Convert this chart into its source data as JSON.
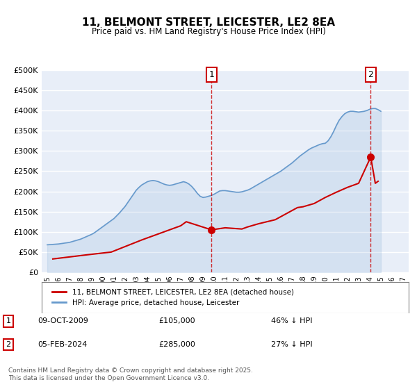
{
  "title": "11, BELMONT STREET, LEICESTER, LE2 8EA",
  "subtitle": "Price paid vs. HM Land Registry's House Price Index (HPI)",
  "bg_color": "#f0f4fa",
  "plot_bg_color": "#e8eef8",
  "grid_color": "#ffffff",
  "hpi_color": "#6699cc",
  "price_color": "#cc0000",
  "marker1_date_label": "09-OCT-2009",
  "marker1_price": 105000,
  "marker1_hpi_pct": "46% ↓ HPI",
  "marker1_x": 2009.77,
  "marker2_date_label": "05-FEB-2024",
  "marker2_price": 285000,
  "marker2_hpi_pct": "27% ↓ HPI",
  "marker2_x": 2024.09,
  "legend_label_price": "11, BELMONT STREET, LEICESTER, LE2 8EA (detached house)",
  "legend_label_hpi": "HPI: Average price, detached house, Leicester",
  "footer": "Contains HM Land Registry data © Crown copyright and database right 2025.\nThis data is licensed under the Open Government Licence v3.0.",
  "ylim": [
    0,
    500000
  ],
  "xlim": [
    1994.5,
    2027.5
  ],
  "yticks": [
    0,
    50000,
    100000,
    150000,
    200000,
    250000,
    300000,
    350000,
    400000,
    450000,
    500000
  ],
  "ytick_labels": [
    "£0",
    "£50K",
    "£100K",
    "£150K",
    "£200K",
    "£250K",
    "£300K",
    "£350K",
    "£400K",
    "£450K",
    "£500K"
  ],
  "xticks": [
    1995,
    1996,
    1997,
    1998,
    1999,
    2000,
    2001,
    2002,
    2003,
    2004,
    2005,
    2006,
    2007,
    2008,
    2009,
    2010,
    2011,
    2012,
    2013,
    2014,
    2015,
    2016,
    2017,
    2018,
    2019,
    2020,
    2021,
    2022,
    2023,
    2024,
    2025,
    2026,
    2027
  ],
  "hpi_x": [
    1995.0,
    1995.25,
    1995.5,
    1995.75,
    1996.0,
    1996.25,
    1996.5,
    1996.75,
    1997.0,
    1997.25,
    1997.5,
    1997.75,
    1998.0,
    1998.25,
    1998.5,
    1998.75,
    1999.0,
    1999.25,
    1999.5,
    1999.75,
    2000.0,
    2000.25,
    2000.5,
    2000.75,
    2001.0,
    2001.25,
    2001.5,
    2001.75,
    2002.0,
    2002.25,
    2002.5,
    2002.75,
    2003.0,
    2003.25,
    2003.5,
    2003.75,
    2004.0,
    2004.25,
    2004.5,
    2004.75,
    2005.0,
    2005.25,
    2005.5,
    2005.75,
    2006.0,
    2006.25,
    2006.5,
    2006.75,
    2007.0,
    2007.25,
    2007.5,
    2007.75,
    2008.0,
    2008.25,
    2008.5,
    2008.75,
    2009.0,
    2009.25,
    2009.5,
    2009.75,
    2010.0,
    2010.25,
    2010.5,
    2010.75,
    2011.0,
    2011.25,
    2011.5,
    2011.75,
    2012.0,
    2012.25,
    2012.5,
    2012.75,
    2013.0,
    2013.25,
    2013.5,
    2013.75,
    2014.0,
    2014.25,
    2014.5,
    2014.75,
    2015.0,
    2015.25,
    2015.5,
    2015.75,
    2016.0,
    2016.25,
    2016.5,
    2016.75,
    2017.0,
    2017.25,
    2017.5,
    2017.75,
    2018.0,
    2018.25,
    2018.5,
    2018.75,
    2019.0,
    2019.25,
    2019.5,
    2019.75,
    2020.0,
    2020.25,
    2020.5,
    2020.75,
    2021.0,
    2021.25,
    2021.5,
    2021.75,
    2022.0,
    2022.25,
    2022.5,
    2022.75,
    2023.0,
    2023.25,
    2023.5,
    2023.75,
    2024.0,
    2024.25,
    2024.5,
    2024.75,
    2025.0
  ],
  "hpi_y": [
    68000,
    68500,
    69000,
    69500,
    70000,
    71000,
    72000,
    73000,
    74000,
    76000,
    78000,
    80000,
    82000,
    85000,
    88000,
    91000,
    94000,
    98000,
    103000,
    108000,
    113000,
    118000,
    123000,
    128000,
    133000,
    140000,
    147000,
    155000,
    163000,
    173000,
    183000,
    193000,
    203000,
    210000,
    216000,
    220000,
    224000,
    226000,
    227000,
    226000,
    224000,
    221000,
    218000,
    216000,
    215000,
    216000,
    218000,
    220000,
    222000,
    224000,
    222000,
    218000,
    212000,
    204000,
    195000,
    188000,
    185000,
    186000,
    188000,
    190000,
    193000,
    197000,
    201000,
    202000,
    202000,
    201000,
    200000,
    199000,
    198000,
    198000,
    199000,
    201000,
    203000,
    206000,
    210000,
    214000,
    218000,
    222000,
    226000,
    230000,
    234000,
    238000,
    242000,
    246000,
    250000,
    255000,
    260000,
    265000,
    270000,
    276000,
    282000,
    288000,
    293000,
    298000,
    303000,
    307000,
    310000,
    313000,
    316000,
    318000,
    319000,
    325000,
    335000,
    348000,
    363000,
    376000,
    385000,
    392000,
    396000,
    398000,
    398000,
    397000,
    396000,
    397000,
    398000,
    400000,
    403000,
    405000,
    405000,
    402000,
    398000
  ],
  "price_x": [
    1995.5,
    1997.0,
    1998.5,
    2000.75,
    2003.5,
    2005.0,
    2007.0,
    2007.5,
    2009.77,
    2011.0,
    2012.5,
    2013.0,
    2014.0,
    2015.5,
    2016.5,
    2017.5,
    2018.0,
    2019.0,
    2020.0,
    2021.0,
    2022.0,
    2022.5,
    2023.0,
    2024.09,
    2024.5,
    2024.75
  ],
  "price_y": [
    33000,
    38000,
    43000,
    50000,
    80000,
    95000,
    115000,
    125000,
    105000,
    110000,
    107000,
    112000,
    120000,
    130000,
    145000,
    160000,
    162000,
    170000,
    185000,
    198000,
    210000,
    215000,
    220000,
    285000,
    220000,
    225000
  ]
}
